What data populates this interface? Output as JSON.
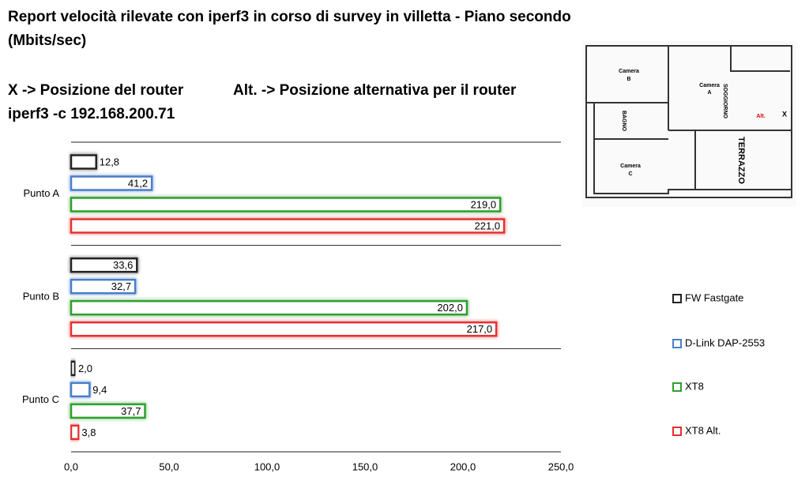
{
  "chart_data": {
    "type": "barh",
    "title": [
      "Report velocità rilevate con iperf3 in corso di survey in villetta - Piano secondo",
      "(Mbits/sec)"
    ],
    "annotations": [
      "X -> Posizione del router",
      "Alt. -> Posizione alternativa per il router",
      "iperf3 -c 192.168.200.71"
    ],
    "categories": [
      "Punto A",
      "Punto B",
      "Punto C"
    ],
    "series": [
      {
        "name": "FW Fastgate",
        "color": "#222222",
        "values": [
          12.8,
          33.6,
          2.0
        ],
        "value_labels": [
          "12,8",
          "33,6",
          "2,0"
        ]
      },
      {
        "name": "D-Link DAP-2553",
        "color": "#4a7fc9",
        "values": [
          41.2,
          32.7,
          9.4
        ],
        "value_labels": [
          "41,2",
          "32,7",
          "9,4"
        ]
      },
      {
        "name": "XT8",
        "color": "#2ea02e",
        "values": [
          219.0,
          202.0,
          37.7
        ],
        "value_labels": [
          "219,0",
          "202,0",
          "37,7"
        ]
      },
      {
        "name": "XT8 Alt.",
        "color": "#e53030",
        "values": [
          221.0,
          217.0,
          3.8
        ],
        "value_labels": [
          "221,0",
          "217,0",
          "3,8"
        ]
      }
    ],
    "xlim": [
      0,
      250
    ],
    "xticks": [
      {
        "value": 0,
        "label": "0,0"
      },
      {
        "value": 50,
        "label": "50,0"
      },
      {
        "value": 100,
        "label": "100,0"
      },
      {
        "value": 150,
        "label": "150,0"
      },
      {
        "value": 200,
        "label": "200,0"
      },
      {
        "value": 250,
        "label": "250,0"
      }
    ],
    "grid": false,
    "legend": "right"
  },
  "floor_plan": {
    "labels": [
      "Camera",
      "B",
      "Camera",
      "A",
      "SOGGIORNO",
      "BAGNO",
      "TERRAZZO",
      "Camera",
      "C",
      "Alt.",
      "X"
    ]
  }
}
